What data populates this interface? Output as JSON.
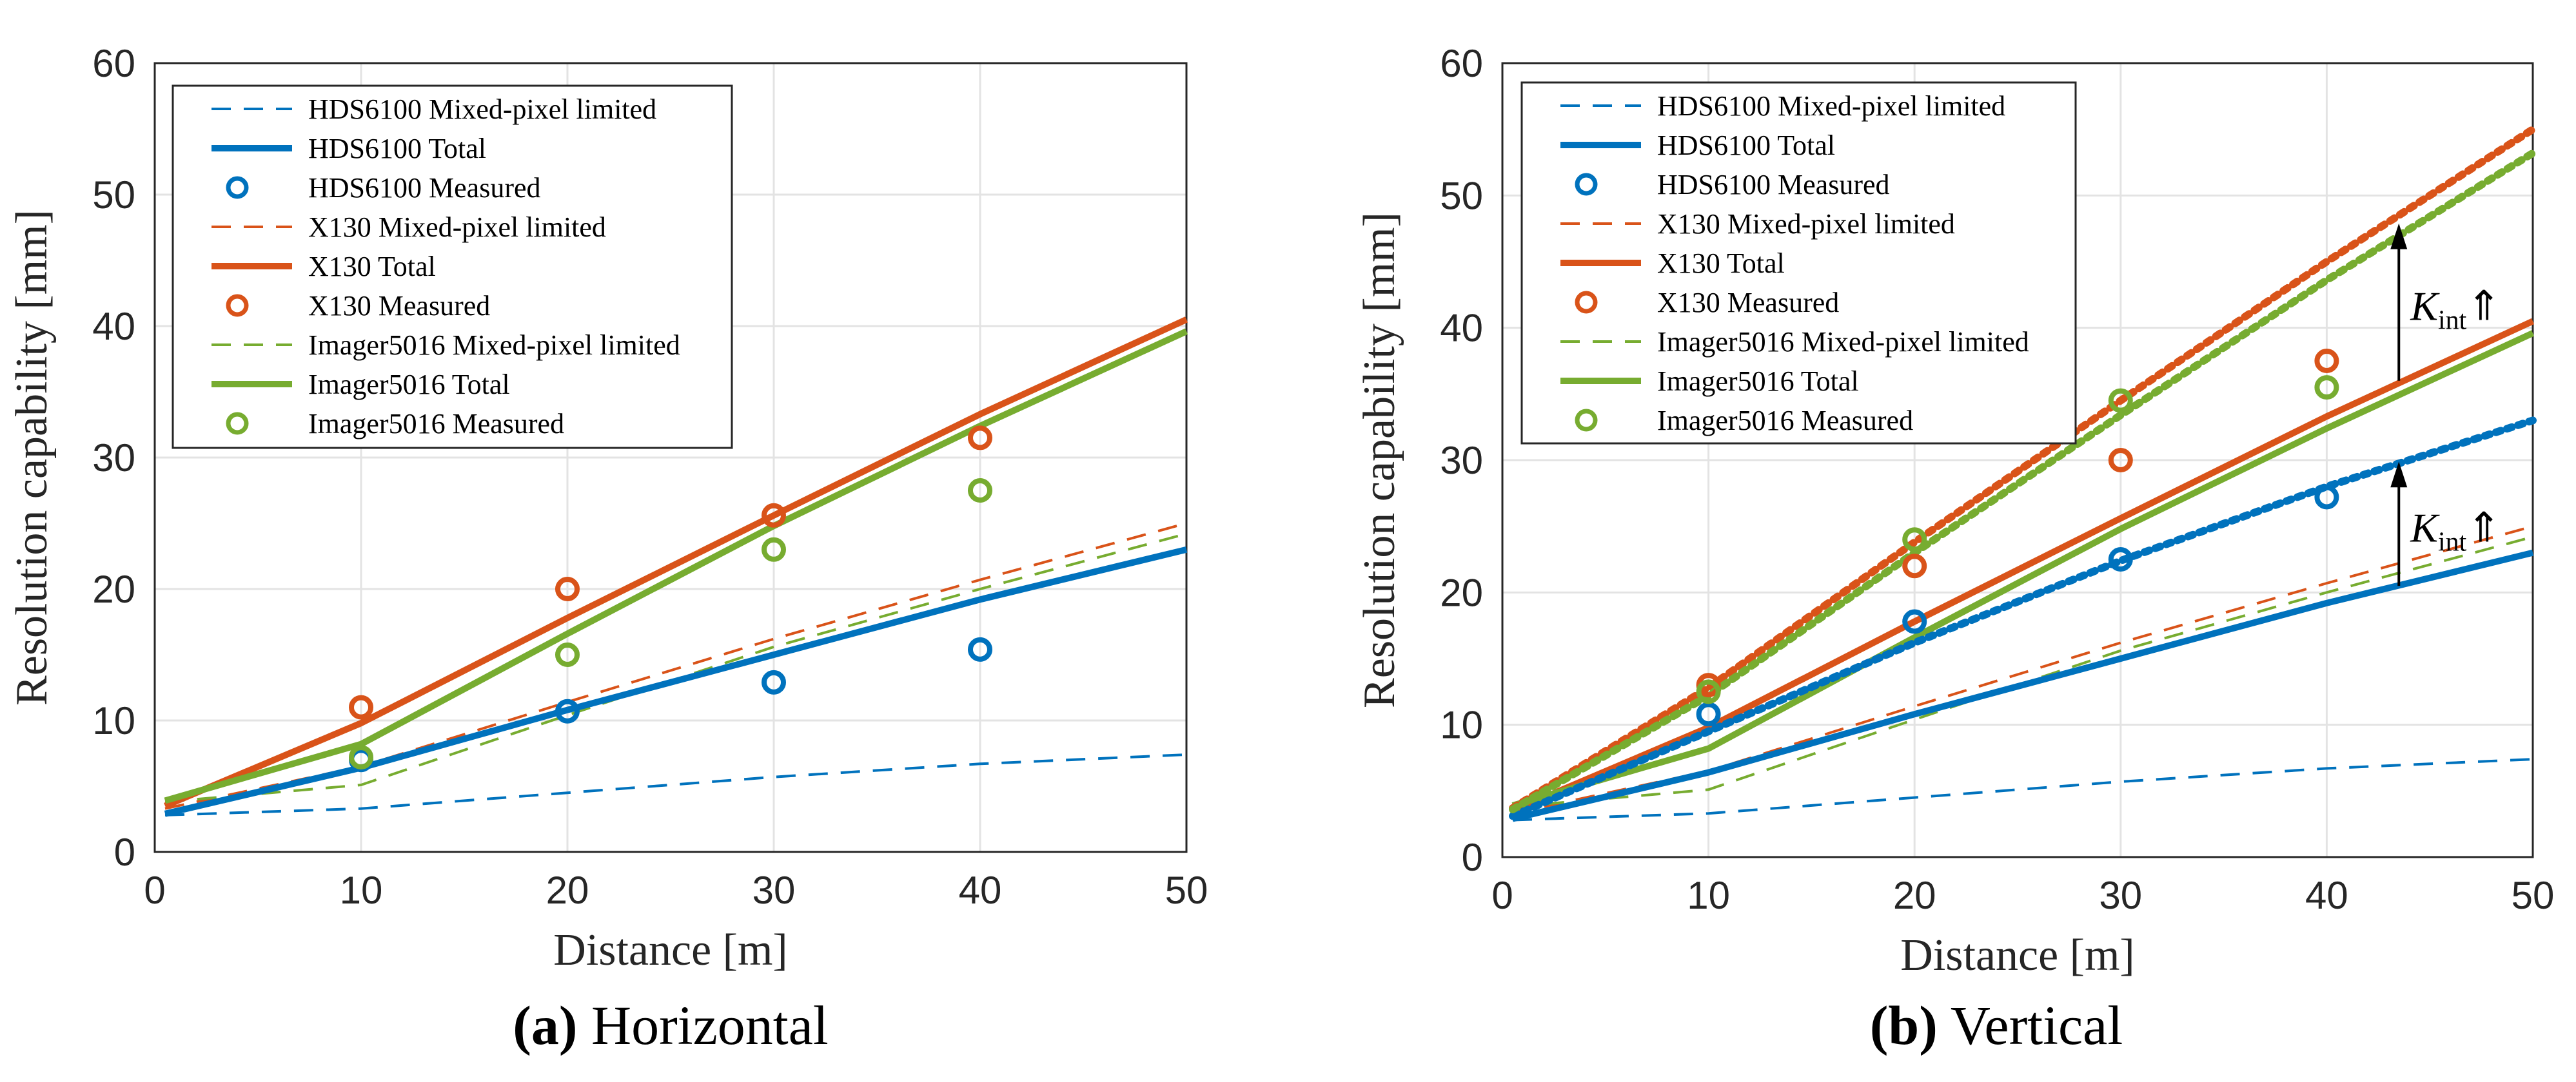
{
  "chart_data": [
    {
      "type": "line",
      "caption_label": "(a)",
      "caption_text": "Horizontal",
      "xlabel": "Distance [m]",
      "ylabel": "Resolution capability [mm]",
      "xlim": [
        0,
        50
      ],
      "ylim": [
        0,
        60
      ],
      "xticks": [
        "0",
        "10",
        "20",
        "30",
        "40",
        "50"
      ],
      "yticks": [
        "0",
        "10",
        "20",
        "30",
        "40",
        "50",
        "60"
      ],
      "grid": true,
      "legend_position": "top-left",
      "series": [
        {
          "name": "HDS6100 Mixed-pixel limited",
          "style": "dash",
          "color": "#0072BD",
          "x": [
            0.5,
            10,
            20,
            30,
            40,
            50
          ],
          "y": [
            2.8,
            3.3,
            4.5,
            5.7,
            6.7,
            7.4
          ]
        },
        {
          "name": "HDS6100 Total",
          "style": "solid",
          "color": "#0072BD",
          "x": [
            0.5,
            10,
            20,
            30,
            40,
            50
          ],
          "y": [
            2.9,
            6.4,
            10.8,
            15.0,
            19.2,
            23.0
          ]
        },
        {
          "name": "HDS6100 Measured",
          "style": "marker",
          "color": "#0072BD",
          "x": [
            10,
            20,
            30,
            40
          ],
          "y": [
            7.0,
            10.7,
            12.9,
            15.4
          ]
        },
        {
          "name": "X130 Mixed-pixel limited",
          "style": "dash",
          "color": "#D95319",
          "x": [
            0.5,
            10,
            20,
            30,
            40,
            50
          ],
          "y": [
            3.3,
            6.5,
            11.4,
            16.2,
            20.7,
            25.0
          ]
        },
        {
          "name": "X130 Total",
          "style": "solid",
          "color": "#D95319",
          "x": [
            0.5,
            10,
            20,
            30,
            40,
            50
          ],
          "y": [
            3.5,
            9.8,
            17.8,
            25.6,
            33.3,
            40.5
          ]
        },
        {
          "name": "X130 Measured",
          "style": "marker",
          "color": "#D95319",
          "x": [
            10,
            20,
            30,
            40
          ],
          "y": [
            11.0,
            20.0,
            25.6,
            31.5
          ]
        },
        {
          "name": "Imager5016 Mixed-pixel limited",
          "style": "dash",
          "color": "#77AC30",
          "x": [
            0.5,
            10,
            20,
            30,
            40,
            50
          ],
          "y": [
            3.8,
            5.1,
            10.4,
            15.6,
            20.0,
            24.2
          ]
        },
        {
          "name": "Imager5016 Total",
          "style": "solid",
          "color": "#77AC30",
          "x": [
            0.5,
            10,
            20,
            30,
            40,
            50
          ],
          "y": [
            3.9,
            8.2,
            16.6,
            24.8,
            32.4,
            39.6
          ]
        },
        {
          "name": "Imager5016 Measured",
          "style": "marker",
          "color": "#77AC30",
          "x": [
            10,
            20,
            30,
            40
          ],
          "y": [
            7.2,
            15.0,
            23.0,
            27.5
          ]
        }
      ],
      "annotations": []
    },
    {
      "type": "line",
      "caption_label": "(b)",
      "caption_text": "Vertical",
      "xlabel": "Distance [m]",
      "ylabel": "Resolution capability [mm]",
      "xlim": [
        0,
        50
      ],
      "ylim": [
        0,
        60
      ],
      "xticks": [
        "0",
        "10",
        "20",
        "30",
        "40",
        "50"
      ],
      "yticks": [
        "0",
        "10",
        "20",
        "30",
        "40",
        "50",
        "60"
      ],
      "grid": true,
      "legend_position": "top-left",
      "series": [
        {
          "name": "HDS6100 Mixed-pixel limited",
          "style": "dash",
          "color": "#0072BD",
          "x": [
            0.5,
            10,
            20,
            30,
            40,
            50
          ],
          "y": [
            2.8,
            3.3,
            4.5,
            5.7,
            6.7,
            7.4
          ]
        },
        {
          "name": "HDS6100 Total",
          "style": "solid",
          "color": "#0072BD",
          "x": [
            0.5,
            10,
            20,
            30,
            40,
            50
          ],
          "y": [
            2.9,
            6.4,
            10.8,
            15.0,
            19.2,
            23.0
          ]
        },
        {
          "name": "HDS6100 Measured",
          "style": "marker",
          "color": "#0072BD",
          "x": [
            10,
            20,
            30,
            40
          ],
          "y": [
            10.8,
            17.8,
            22.5,
            27.2
          ]
        },
        {
          "name": "X130 Mixed-pixel limited",
          "style": "dash",
          "color": "#D95319",
          "x": [
            0.5,
            10,
            20,
            30,
            40,
            50
          ],
          "y": [
            3.3,
            6.5,
            11.4,
            16.2,
            20.7,
            25.0
          ]
        },
        {
          "name": "X130 Total",
          "style": "solid",
          "color": "#D95319",
          "x": [
            0.5,
            10,
            20,
            30,
            40,
            50
          ],
          "y": [
            3.5,
            9.8,
            17.8,
            25.6,
            33.3,
            40.5
          ]
        },
        {
          "name": "X130 Measured",
          "style": "marker",
          "color": "#D95319",
          "x": [
            10,
            20,
            30,
            40
          ],
          "y": [
            13.0,
            22.0,
            30.0,
            37.5
          ]
        },
        {
          "name": "Imager5016 Mixed-pixel limited",
          "style": "dash",
          "color": "#77AC30",
          "x": [
            0.5,
            10,
            20,
            30,
            40,
            50
          ],
          "y": [
            3.8,
            5.1,
            10.4,
            15.6,
            20.0,
            24.2
          ]
        },
        {
          "name": "Imager5016 Total",
          "style": "solid",
          "color": "#77AC30",
          "x": [
            0.5,
            10,
            20,
            30,
            40,
            50
          ],
          "y": [
            3.9,
            8.2,
            16.6,
            24.8,
            32.4,
            39.6
          ]
        },
        {
          "name": "Imager5016 Measured",
          "style": "marker",
          "color": "#77AC30",
          "x": [
            10,
            20,
            30,
            40
          ],
          "y": [
            12.5,
            24.0,
            34.5,
            35.5
          ]
        },
        {
          "name": "HDS6100 scaled",
          "style": "dot",
          "color": "#0072BD",
          "in_legend": false,
          "x": [
            0.5,
            10,
            20,
            30,
            40,
            50
          ],
          "y": [
            3.1,
            9.5,
            16.2,
            22.4,
            28.0,
            33.0
          ]
        },
        {
          "name": "X130 scaled",
          "style": "dot",
          "color": "#D95319",
          "in_legend": false,
          "x": [
            0.5,
            10,
            20,
            30,
            40,
            50
          ],
          "y": [
            3.7,
            12.8,
            23.8,
            34.5,
            45.0,
            55.0
          ]
        },
        {
          "name": "Imager5016 scaled",
          "style": "dot",
          "color": "#77AC30",
          "in_legend": false,
          "x": [
            0.5,
            10,
            20,
            30,
            40,
            50
          ],
          "y": [
            3.6,
            12.2,
            23.0,
            33.4,
            43.6,
            53.2
          ]
        }
      ],
      "annotations": [
        {
          "base": "K",
          "sub": "int",
          "symbol": "⇑",
          "x": 43.5,
          "y_from": 36.0,
          "y_to": 47.5
        },
        {
          "base": "K",
          "sub": "int",
          "symbol": "⇑",
          "x": 43.5,
          "y_from": 20.5,
          "y_to": 29.5
        }
      ]
    }
  ]
}
